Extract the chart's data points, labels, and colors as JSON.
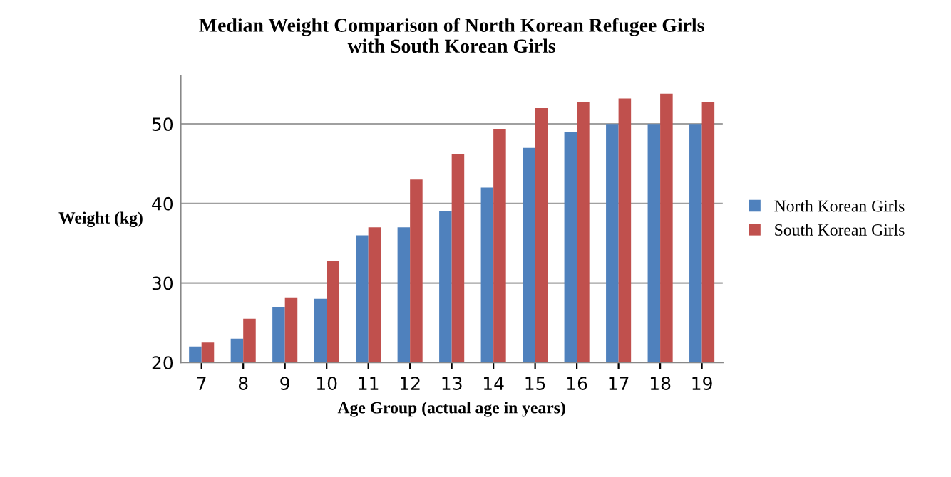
{
  "chart_data": {
    "type": "bar",
    "title": "Median Weight Comparison of North Korean Refugee Girls\nwith South Korean Girls",
    "xlabel": "Age Group (actual age in years)",
    "ylabel": "Weight (kg)",
    "categories": [
      "7",
      "8",
      "9",
      "10",
      "11",
      "12",
      "13",
      "14",
      "15",
      "16",
      "17",
      "18",
      "19"
    ],
    "series": [
      {
        "name": "North Korean Girls",
        "color": "#4f81bd",
        "values": [
          22,
          23,
          27,
          28,
          36,
          37,
          39,
          42,
          47,
          49,
          50,
          50,
          50
        ]
      },
      {
        "name": "South Korean Girls",
        "color": "#c0504d",
        "values": [
          22.5,
          25.5,
          28.2,
          32.8,
          37,
          43,
          46.2,
          49.4,
          52,
          52.8,
          53.2,
          53.8,
          52.8
        ]
      }
    ],
    "ylim": [
      20,
      56
    ],
    "yticks": [
      20,
      30,
      40,
      50
    ],
    "grid": "y",
    "legend": "right"
  }
}
